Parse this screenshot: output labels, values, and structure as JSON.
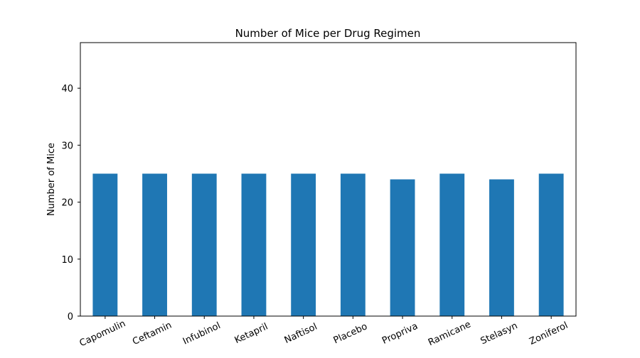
{
  "chart_data": {
    "type": "bar",
    "title": "Number of Mice per Drug Regimen",
    "xlabel": "",
    "ylabel": "Number of Mice",
    "categories": [
      "Capomulin",
      "Ceftamin",
      "Infubinol",
      "Ketapril",
      "Naftisol",
      "Placebo",
      "Propriva",
      "Ramicane",
      "Stelasyn",
      "Zoniferol"
    ],
    "values": [
      25,
      25,
      25,
      25,
      25,
      25,
      24,
      25,
      24,
      25
    ],
    "ylim": [
      0,
      48
    ],
    "yticks": [
      0,
      10,
      20,
      30,
      40
    ],
    "grid": false,
    "legend": "none",
    "colors": {
      "bar": "#1f77b4",
      "axis": "#000000",
      "background": "#ffffff"
    }
  }
}
